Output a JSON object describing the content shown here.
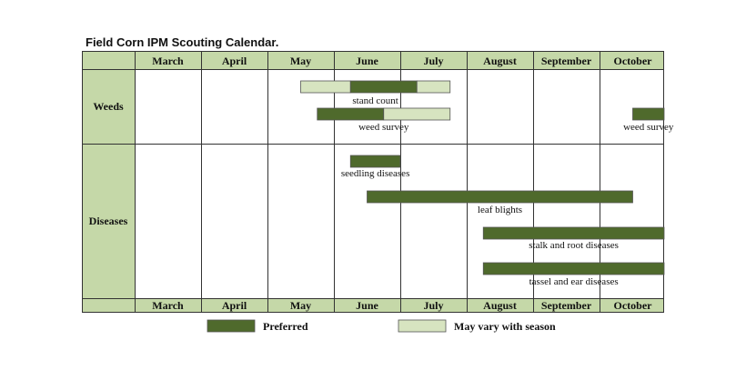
{
  "chart_data": {
    "type": "gantt",
    "title": "Field Corn IPM Scouting Calendar.",
    "months": [
      "March",
      "April",
      "May",
      "June",
      "July",
      "August",
      "September",
      "October"
    ],
    "groups": [
      {
        "label": "Weeds",
        "bars": [
          {
            "label": "stand count",
            "segments": [
              {
                "kind": "may_vary",
                "start": 2.5,
                "end": 3.25
              },
              {
                "kind": "preferred",
                "start": 3.25,
                "end": 4.25
              },
              {
                "kind": "may_vary",
                "start": 4.25,
                "end": 4.75
              }
            ]
          },
          {
            "label": "weed survey",
            "segments": [
              {
                "kind": "preferred",
                "start": 2.75,
                "end": 3.75
              },
              {
                "kind": "may_vary",
                "start": 3.75,
                "end": 4.75
              }
            ]
          },
          {
            "label": "weed survey",
            "segments": [
              {
                "kind": "preferred",
                "start": 7.5,
                "end": 8.5
              },
              {
                "kind": "may_vary",
                "start": 8.5,
                "end": 9.0
              }
            ]
          }
        ]
      },
      {
        "label": "Diseases",
        "bars": [
          {
            "label": "seedling diseases",
            "segments": [
              {
                "kind": "preferred",
                "start": 3.25,
                "end": 4.0
              }
            ]
          },
          {
            "label": "leaf blights",
            "segments": [
              {
                "kind": "preferred",
                "start": 3.5,
                "end": 7.5
              }
            ]
          },
          {
            "label": "stalk and root diseases",
            "segments": [
              {
                "kind": "preferred",
                "start": 5.25,
                "end": 8.5
              }
            ]
          },
          {
            "label": "tassel and ear diseases",
            "segments": [
              {
                "kind": "preferred",
                "start": 5.25,
                "end": 8.75
              }
            ]
          }
        ]
      }
    ],
    "legend": [
      {
        "kind": "preferred",
        "label": "Preferred"
      },
      {
        "kind": "may_vary",
        "label": "May vary with season"
      }
    ],
    "colors": {
      "preferred": "#4f6a2c",
      "may_vary": "#d7e4c0",
      "header_fill": "#c5d8a8",
      "grid": "#333333"
    }
  }
}
